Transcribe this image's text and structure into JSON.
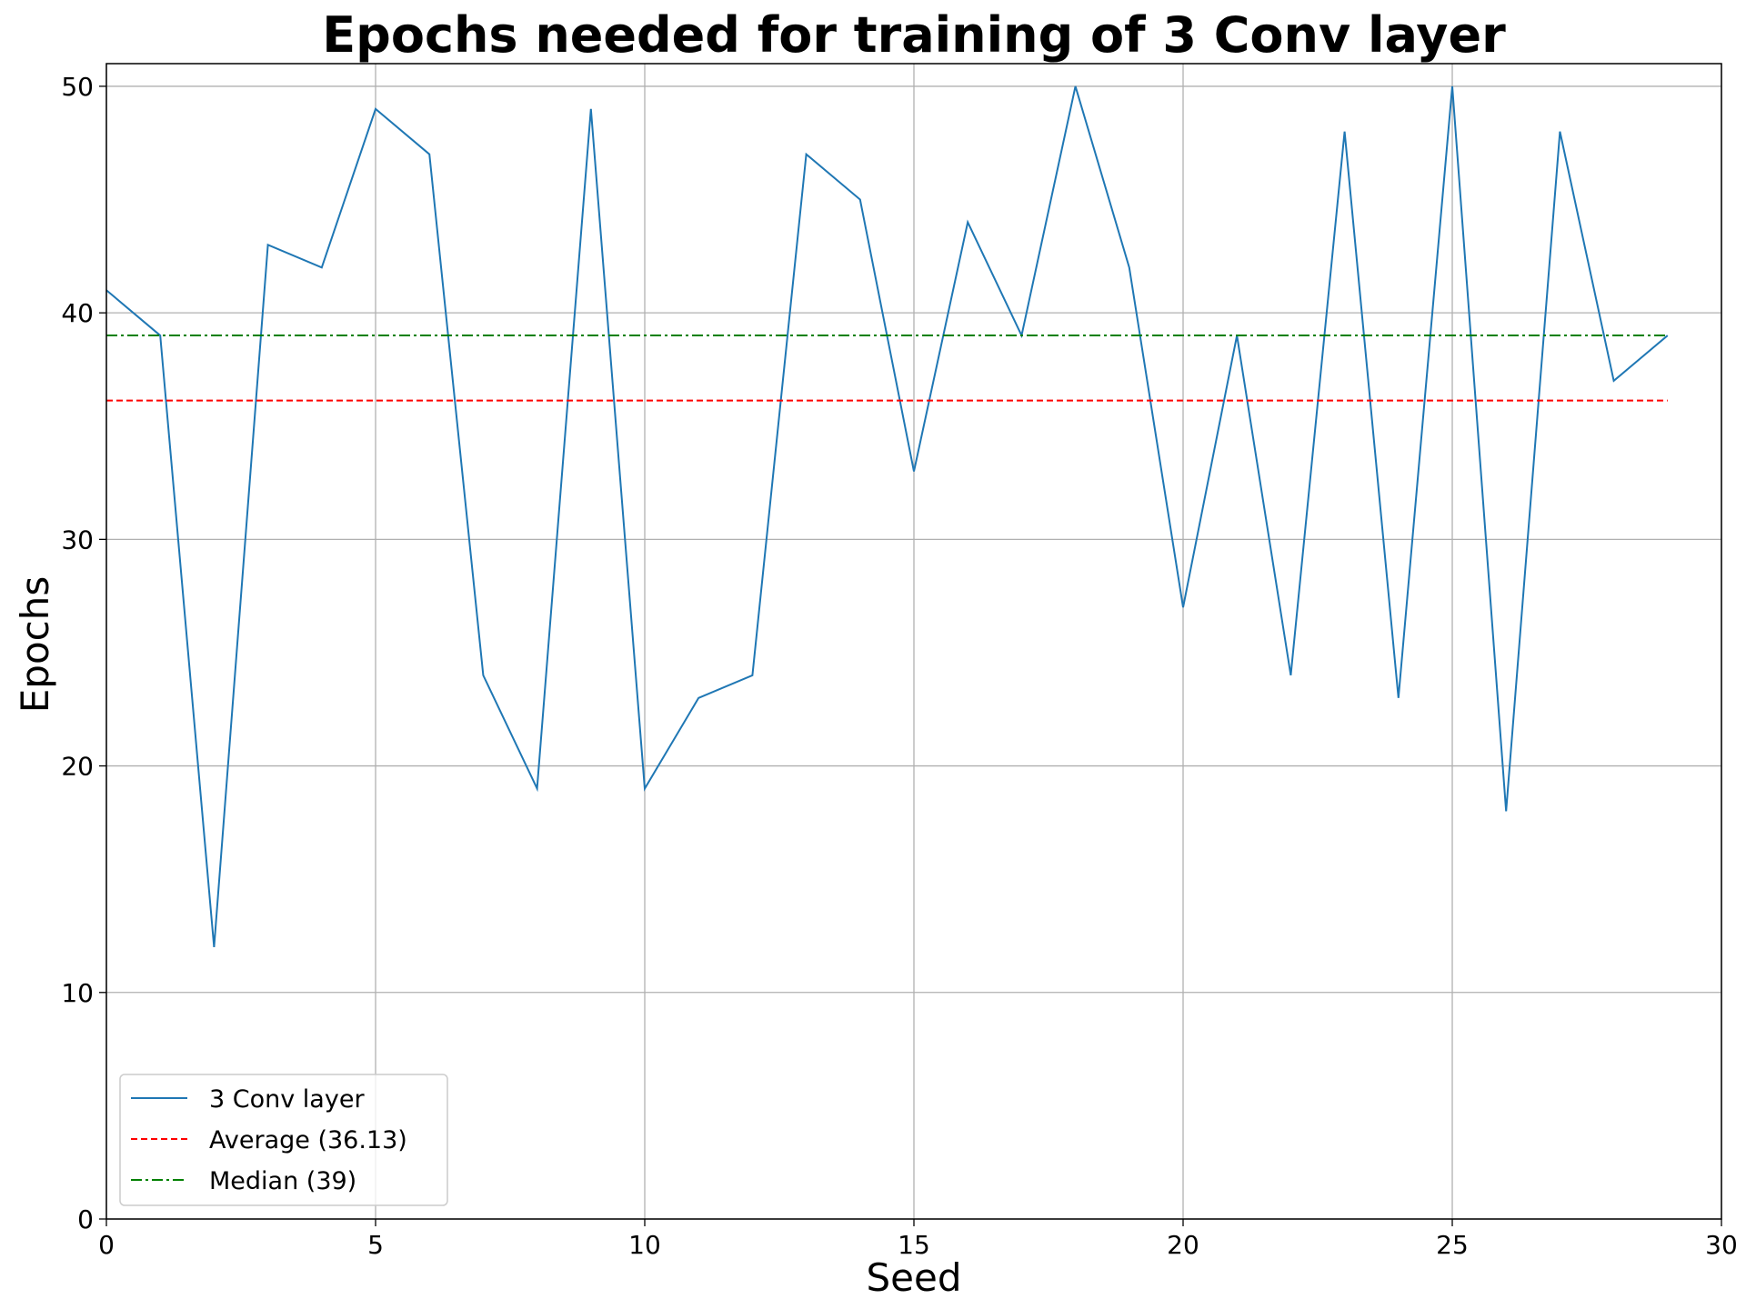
{
  "chart_data": {
    "type": "line",
    "title": "Epochs needed for training of 3 Conv layer",
    "xlabel": "Seed",
    "ylabel": "Epochs",
    "xlim": [
      0,
      30
    ],
    "ylim": [
      0,
      51
    ],
    "xticks": [
      0,
      5,
      10,
      15,
      20,
      25,
      30
    ],
    "yticks": [
      0,
      10,
      20,
      30,
      40,
      50
    ],
    "grid": true,
    "legend_position": "lower-left",
    "series": [
      {
        "name": "3 Conv layer",
        "color": "#1f77b4",
        "style": "solid",
        "x": [
          0,
          1,
          2,
          3,
          4,
          5,
          6,
          7,
          8,
          9,
          10,
          11,
          12,
          13,
          14,
          15,
          16,
          17,
          18,
          19,
          20,
          21,
          22,
          23,
          24,
          25,
          26,
          27,
          28,
          29
        ],
        "y": [
          41,
          39,
          12,
          43,
          42,
          49,
          47,
          24,
          19,
          49,
          19,
          23,
          24,
          47,
          45,
          33,
          44,
          39,
          50,
          42,
          27,
          39,
          24,
          48,
          23,
          50,
          18,
          48,
          37,
          39
        ]
      },
      {
        "name": "Average (36.13)",
        "color": "#ff0000",
        "style": "dashed",
        "x": [
          0,
          29
        ],
        "y": [
          36.13,
          36.13
        ]
      },
      {
        "name": "Median (39)",
        "color": "#008000",
        "style": "dashdot",
        "x": [
          0,
          29
        ],
        "y": [
          39,
          39
        ]
      }
    ]
  }
}
